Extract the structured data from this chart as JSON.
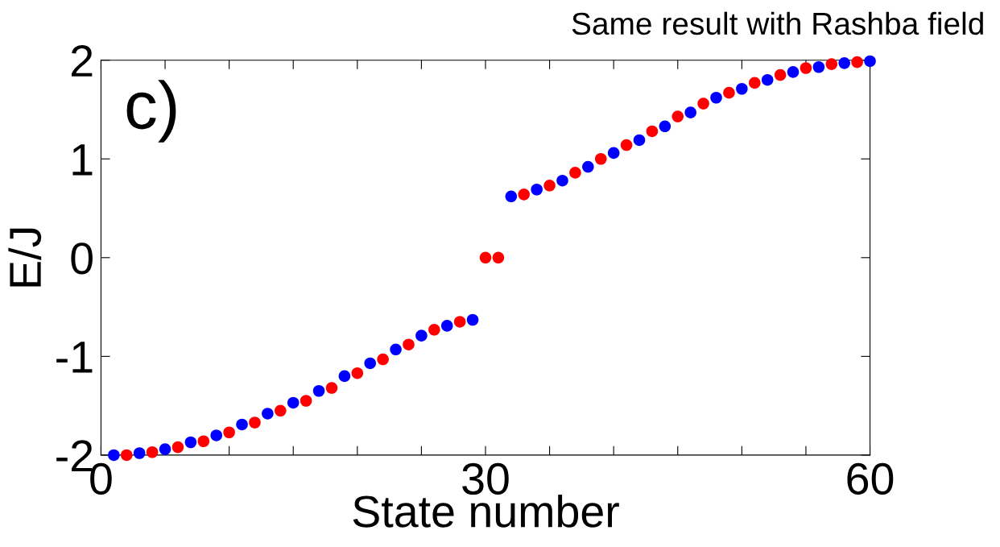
{
  "chart_data": {
    "type": "scatter",
    "title": "Same result with Rashba field",
    "xlabel": "State number",
    "ylabel": "E/J",
    "annotations": [
      "c)"
    ],
    "xlim": [
      0,
      60
    ],
    "ylim": [
      -2,
      2
    ],
    "xticks": [
      0,
      {
        "value": 5,
        "label": null
      },
      {
        "value": 10,
        "label": null
      },
      {
        "value": 15,
        "label": null
      },
      {
        "value": 20,
        "label": null
      },
      {
        "value": 25,
        "label": null
      },
      30,
      {
        "value": 35,
        "label": null
      },
      {
        "value": 40,
        "label": null
      },
      {
        "value": 45,
        "label": null
      },
      {
        "value": 50,
        "label": null
      },
      {
        "value": 55,
        "label": null
      },
      60
    ],
    "yticks": [
      -2,
      -1,
      0,
      1,
      2
    ],
    "grid": false,
    "marker": "circle",
    "series": [
      {
        "color": "#0000ff",
        "x": [
          1,
          3,
          5,
          7,
          9,
          11,
          13,
          15,
          17,
          19,
          21,
          23,
          25,
          27,
          29,
          32,
          34,
          36,
          38,
          40,
          42,
          44,
          46,
          48,
          50,
          52,
          54,
          56,
          58,
          60
        ],
        "values": [
          -2.0,
          -1.98,
          -1.94,
          -1.87,
          -1.8,
          -1.69,
          -1.58,
          -1.47,
          -1.35,
          -1.2,
          -1.07,
          -0.93,
          -0.79,
          -0.69,
          -0.63,
          0.62,
          0.69,
          0.78,
          0.92,
          1.06,
          1.19,
          1.33,
          1.47,
          1.62,
          1.71,
          1.8,
          1.88,
          1.93,
          1.97,
          1.99
        ]
      },
      {
        "color": "#ff0000",
        "x": [
          2,
          4,
          6,
          8,
          10,
          12,
          14,
          16,
          18,
          20,
          22,
          24,
          26,
          28,
          30,
          31,
          33,
          35,
          37,
          39,
          41,
          43,
          45,
          47,
          49,
          51,
          53,
          55,
          57,
          59
        ],
        "values": [
          -2.0,
          -1.97,
          -1.92,
          -1.86,
          -1.77,
          -1.67,
          -1.55,
          -1.45,
          -1.32,
          -1.17,
          -1.03,
          -0.88,
          -0.73,
          -0.65,
          0,
          0,
          0.64,
          0.73,
          0.86,
          1.0,
          1.14,
          1.28,
          1.43,
          1.56,
          1.67,
          1.77,
          1.85,
          1.92,
          1.96,
          1.98
        ]
      }
    ]
  }
}
